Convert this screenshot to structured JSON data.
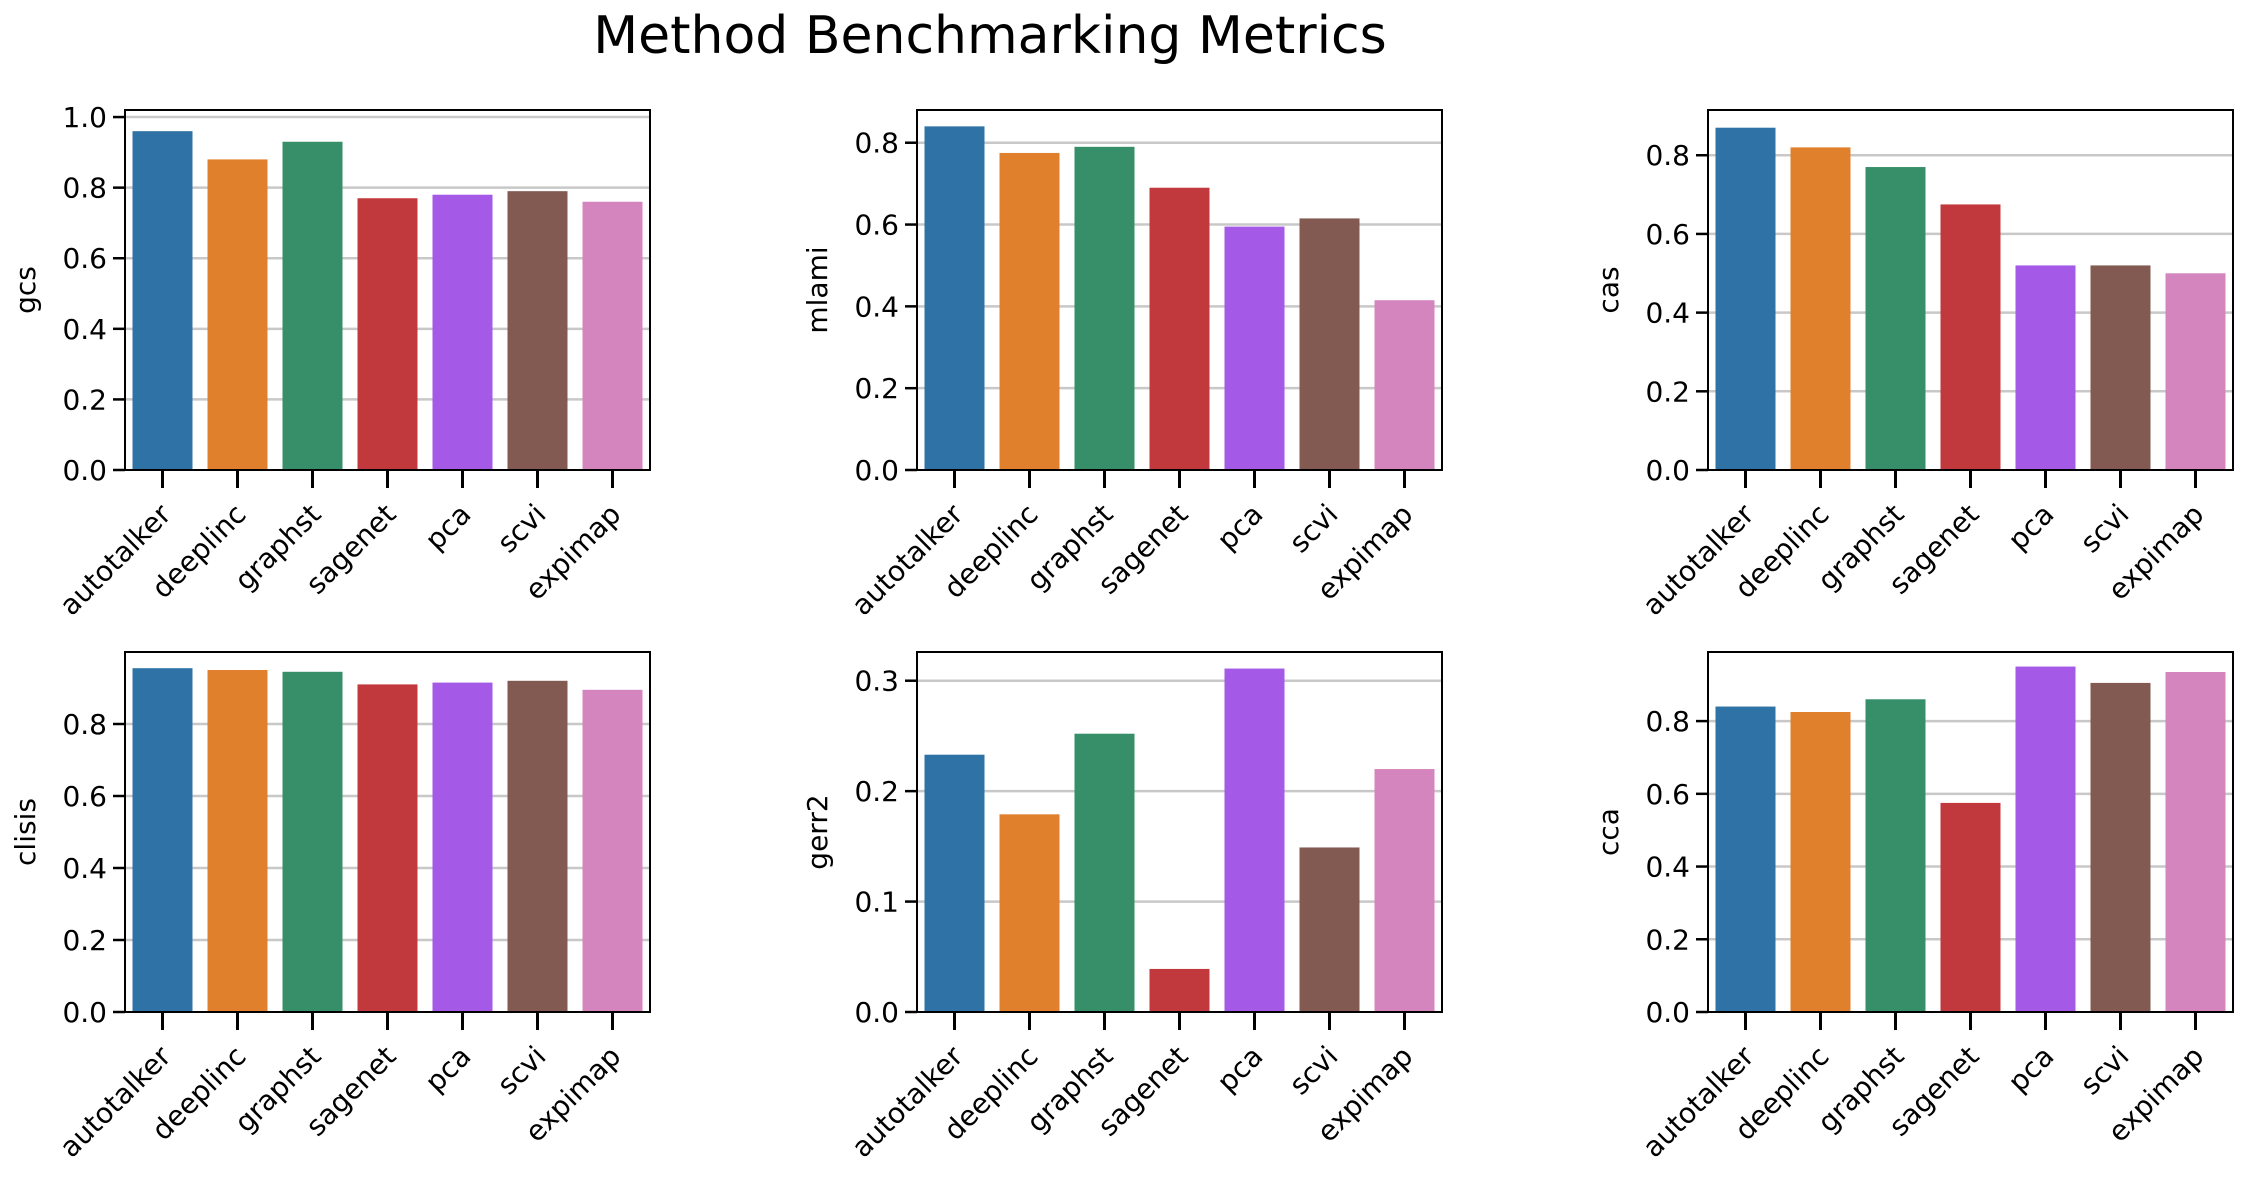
{
  "figure": {
    "title": "Method Benchmarking Metrics"
  },
  "palette": {
    "autotalker": "#2e72a6",
    "deeplinc": "#e0802c",
    "graphst": "#368f69",
    "sagenet": "#c1393c",
    "pca": "#a45ae6",
    "scvi": "#835a52",
    "expimap": "#d585bd",
    "grid": "#c8c8c8"
  },
  "chart_data": [
    {
      "type": "bar",
      "categories": [
        "autotalker",
        "deeplinc",
        "graphst",
        "sagenet",
        "pca",
        "scvi",
        "expimap"
      ],
      "values": [
        0.96,
        0.88,
        0.93,
        0.77,
        0.78,
        0.79,
        0.76
      ],
      "ylabel": "gcs",
      "ylim": [
        0,
        1.02
      ],
      "yticks": [
        0.0,
        0.2,
        0.4,
        0.6,
        0.8,
        1.0
      ],
      "ytick_labels": [
        "0.0",
        "0.2",
        "0.4",
        "0.6",
        "0.8",
        "1.0"
      ],
      "grid": "y"
    },
    {
      "type": "bar",
      "categories": [
        "autotalker",
        "deeplinc",
        "graphst",
        "sagenet",
        "pca",
        "scvi",
        "expimap"
      ],
      "values": [
        0.84,
        0.775,
        0.79,
        0.69,
        0.595,
        0.615,
        0.415
      ],
      "ylabel": "mlami",
      "ylim": [
        0,
        0.88
      ],
      "yticks": [
        0.0,
        0.2,
        0.4,
        0.6,
        0.8
      ],
      "ytick_labels": [
        "0.0",
        "0.2",
        "0.4",
        "0.6",
        "0.8"
      ],
      "grid": "y"
    },
    {
      "type": "bar",
      "categories": [
        "autotalker",
        "deeplinc",
        "graphst",
        "sagenet",
        "pca",
        "scvi",
        "expimap"
      ],
      "values": [
        0.87,
        0.82,
        0.77,
        0.675,
        0.52,
        0.52,
        0.5
      ],
      "ylabel": "cas",
      "ylim": [
        0,
        0.915
      ],
      "yticks": [
        0.0,
        0.2,
        0.4,
        0.6,
        0.8
      ],
      "ytick_labels": [
        "0.0",
        "0.2",
        "0.4",
        "0.6",
        "0.8"
      ],
      "grid": "y"
    },
    {
      "type": "bar",
      "categories": [
        "autotalker",
        "deeplinc",
        "graphst",
        "sagenet",
        "pca",
        "scvi",
        "expimap"
      ],
      "values": [
        0.955,
        0.95,
        0.945,
        0.91,
        0.915,
        0.92,
        0.895
      ],
      "ylabel": "clisis",
      "ylim": [
        0,
        1.0
      ],
      "yticks": [
        0.0,
        0.2,
        0.4,
        0.6,
        0.8
      ],
      "ytick_labels": [
        "0.0",
        "0.2",
        "0.4",
        "0.6",
        "0.8"
      ],
      "grid": "y"
    },
    {
      "type": "bar",
      "categories": [
        "autotalker",
        "deeplinc",
        "graphst",
        "sagenet",
        "pca",
        "scvi",
        "expimap"
      ],
      "values": [
        0.233,
        0.179,
        0.252,
        0.039,
        0.311,
        0.149,
        0.22
      ],
      "ylabel": "gerr2",
      "ylim": [
        0,
        0.326
      ],
      "yticks": [
        0.0,
        0.1,
        0.2,
        0.3
      ],
      "ytick_labels": [
        "0.0",
        "0.1",
        "0.2",
        "0.3"
      ],
      "grid": "y"
    },
    {
      "type": "bar",
      "categories": [
        "autotalker",
        "deeplinc",
        "graphst",
        "sagenet",
        "pca",
        "scvi",
        "expimap"
      ],
      "values": [
        0.84,
        0.825,
        0.86,
        0.575,
        0.95,
        0.905,
        0.935
      ],
      "ylabel": "cca",
      "ylim": [
        0,
        0.99
      ],
      "yticks": [
        0.0,
        0.2,
        0.4,
        0.6,
        0.8
      ],
      "ytick_labels": [
        "0.0",
        "0.2",
        "0.4",
        "0.6",
        "0.8"
      ],
      "grid": "y"
    }
  ]
}
